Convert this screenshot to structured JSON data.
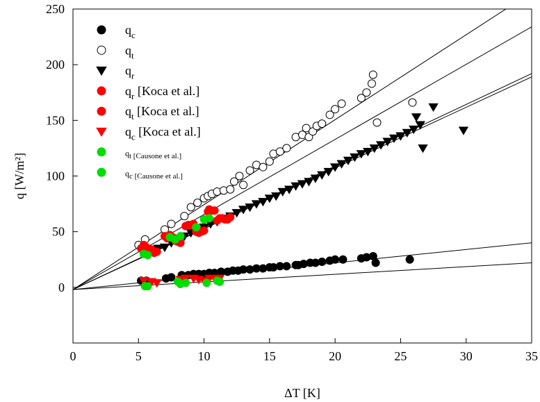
{
  "chart_data": {
    "type": "scatter",
    "title": "",
    "xlabel": "ΔT [K]",
    "ylabel": "q [W/m²]",
    "xlim": [
      0,
      35
    ],
    "ylim": [
      -50,
      250
    ],
    "x_ticks": [
      0,
      5,
      10,
      15,
      20,
      25,
      30,
      35
    ],
    "y_ticks": [
      0,
      50,
      100,
      150,
      200,
      250
    ],
    "grid": false,
    "legend_position": "top-left",
    "series": [
      {
        "name": "qc",
        "marker": "circle",
        "filled": true,
        "color": "#000000",
        "points": [
          [
            5.2,
            6
          ],
          [
            5.6,
            6
          ],
          [
            7.1,
            8
          ],
          [
            7.5,
            9
          ],
          [
            8.3,
            11
          ],
          [
            8.8,
            11
          ],
          [
            9.2,
            12
          ],
          [
            9.6,
            12
          ],
          [
            10,
            12
          ],
          [
            10.4,
            13
          ],
          [
            10.8,
            13
          ],
          [
            11.3,
            14
          ],
          [
            11.8,
            14
          ],
          [
            12.2,
            15
          ],
          [
            12.6,
            15
          ],
          [
            13,
            16
          ],
          [
            13.5,
            16
          ],
          [
            14,
            17
          ],
          [
            14.5,
            17
          ],
          [
            15,
            18
          ],
          [
            15.3,
            18
          ],
          [
            15.8,
            19
          ],
          [
            16.3,
            19
          ],
          [
            17,
            20
          ],
          [
            17.2,
            20
          ],
          [
            17.6,
            21
          ],
          [
            18.1,
            22
          ],
          [
            18.5,
            22
          ],
          [
            19,
            23
          ],
          [
            19.6,
            24
          ],
          [
            20,
            25
          ],
          [
            20.6,
            25
          ],
          [
            22,
            26
          ],
          [
            22.4,
            27
          ],
          [
            22.9,
            28
          ],
          [
            23.1,
            22
          ],
          [
            25.7,
            25
          ]
        ]
      },
      {
        "name": "qt",
        "marker": "circle",
        "filled": false,
        "color": "#000000",
        "points": [
          [
            5,
            38
          ],
          [
            5.5,
            43
          ],
          [
            7,
            52
          ],
          [
            7.5,
            57
          ],
          [
            8.5,
            64
          ],
          [
            9,
            72
          ],
          [
            9.5,
            76
          ],
          [
            10,
            80
          ],
          [
            10.3,
            82
          ],
          [
            10.6,
            84
          ],
          [
            11,
            86
          ],
          [
            11.5,
            87
          ],
          [
            12,
            88
          ],
          [
            12.3,
            95
          ],
          [
            12.7,
            100
          ],
          [
            13,
            92
          ],
          [
            13.5,
            105
          ],
          [
            14,
            110
          ],
          [
            14.5,
            108
          ],
          [
            15,
            113
          ],
          [
            15.3,
            120
          ],
          [
            15.8,
            122
          ],
          [
            16.3,
            125
          ],
          [
            17,
            135
          ],
          [
            17.5,
            137
          ],
          [
            17.8,
            143
          ],
          [
            18,
            135
          ],
          [
            18.3,
            140
          ],
          [
            18.6,
            145
          ],
          [
            19,
            147
          ],
          [
            19.6,
            155
          ],
          [
            20,
            160
          ],
          [
            20.5,
            165
          ],
          [
            22,
            170
          ],
          [
            22.4,
            175
          ],
          [
            22.8,
            183
          ],
          [
            22.9,
            191
          ],
          [
            23.2,
            148
          ],
          [
            25.9,
            166
          ]
        ]
      },
      {
        "name": "qr",
        "marker": "triangle-down",
        "filled": true,
        "color": "#000000",
        "points": [
          [
            6,
            33
          ],
          [
            6.5,
            35
          ],
          [
            7,
            36
          ],
          [
            7.5,
            40
          ],
          [
            8,
            44
          ],
          [
            8.5,
            46
          ],
          [
            9,
            49
          ],
          [
            9.5,
            51
          ],
          [
            10,
            54
          ],
          [
            10.5,
            57
          ],
          [
            11,
            59
          ],
          [
            11.5,
            62
          ],
          [
            12,
            64
          ],
          [
            12.5,
            67
          ],
          [
            13,
            70
          ],
          [
            13.5,
            72
          ],
          [
            14,
            75
          ],
          [
            14.5,
            77
          ],
          [
            15,
            80
          ],
          [
            15.5,
            82
          ],
          [
            16,
            86
          ],
          [
            16.5,
            88
          ],
          [
            17,
            91
          ],
          [
            17.5,
            93
          ],
          [
            18,
            95
          ],
          [
            18.5,
            98
          ],
          [
            19,
            101
          ],
          [
            19.5,
            104
          ],
          [
            20,
            108
          ],
          [
            20.5,
            111
          ],
          [
            21,
            114
          ],
          [
            21.5,
            117
          ],
          [
            22,
            120
          ],
          [
            22.5,
            122
          ],
          [
            23,
            125
          ],
          [
            23.5,
            128
          ],
          [
            24,
            131
          ],
          [
            24.5,
            134
          ],
          [
            25,
            136
          ],
          [
            25.5,
            139
          ],
          [
            26,
            142
          ],
          [
            26.5,
            146
          ],
          [
            26.2,
            153
          ],
          [
            26.7,
            125
          ],
          [
            27.5,
            162
          ],
          [
            29.8,
            141
          ]
        ]
      },
      {
        "name": "qr [Koca et al.]",
        "marker": "circle",
        "filled": true,
        "color": "#ff0000",
        "points": [
          [
            5.2,
            35
          ],
          [
            5.6,
            36
          ],
          [
            6,
            34
          ],
          [
            6.4,
            32
          ],
          [
            7,
            46
          ],
          [
            7.4,
            47
          ],
          [
            7.8,
            42
          ],
          [
            8.2,
            40
          ],
          [
            8.8,
            56
          ],
          [
            9.2,
            57
          ],
          [
            9.6,
            49
          ],
          [
            10,
            51
          ],
          [
            10.3,
            68
          ],
          [
            10.6,
            69
          ],
          [
            11,
            60
          ],
          [
            11.4,
            62
          ],
          [
            11.8,
            61
          ]
        ]
      },
      {
        "name": "qt [Koca et al.]",
        "marker": "circle",
        "filled": true,
        "color": "#ff0000",
        "points": [
          [
            5.4,
            38
          ],
          [
            5.8,
            33
          ],
          [
            6.2,
            31
          ],
          [
            7.2,
            44
          ],
          [
            7.6,
            45
          ],
          [
            8,
            41
          ],
          [
            8.6,
            55
          ],
          [
            9,
            56
          ],
          [
            9.4,
            50
          ],
          [
            9.8,
            50
          ],
          [
            10.4,
            70
          ],
          [
            10.8,
            69
          ],
          [
            11.2,
            62
          ],
          [
            11.6,
            61
          ],
          [
            12,
            63
          ]
        ]
      },
      {
        "name": "qc [Koca et al.]",
        "marker": "triangle-down",
        "filled": true,
        "color": "#ff0000",
        "points": [
          [
            5.4,
            6
          ],
          [
            6,
            5
          ],
          [
            6.4,
            4
          ],
          [
            8.2,
            7
          ],
          [
            8.6,
            8
          ],
          [
            9.2,
            8
          ],
          [
            9.6,
            7
          ],
          [
            10,
            6
          ],
          [
            10.4,
            8
          ],
          [
            10.8,
            8
          ],
          [
            11.2,
            8
          ]
        ]
      },
      {
        "name": "qt [Causone et al.]",
        "marker": "circle",
        "filled": true,
        "color": "#00dd00",
        "points": [
          [
            5.4,
            30
          ],
          [
            5.7,
            29
          ],
          [
            7.4,
            45
          ],
          [
            7.8,
            43
          ],
          [
            8.2,
            46
          ],
          [
            9.4,
            54
          ],
          [
            10,
            61
          ],
          [
            10.4,
            62
          ]
        ]
      },
      {
        "name": "qc [Causone et al.]",
        "marker": "circle",
        "filled": true,
        "color": "#00dd00",
        "points": [
          [
            5.5,
            1
          ],
          [
            5.7,
            1
          ],
          [
            8,
            5
          ],
          [
            8.2,
            3
          ],
          [
            8.6,
            4
          ],
          [
            10.2,
            4
          ],
          [
            11,
            6
          ],
          [
            11.2,
            5
          ]
        ]
      }
    ],
    "fit_lines": [
      {
        "x": [
          0,
          35
        ],
        "y": [
          -2,
          265
        ]
      },
      {
        "x": [
          0,
          35
        ],
        "y": [
          -2,
          234
        ]
      },
      {
        "x": [
          0,
          35
        ],
        "y": [
          -2,
          192
        ]
      },
      {
        "x": [
          0,
          35
        ],
        "y": [
          -2,
          189
        ]
      },
      {
        "x": [
          0,
          35
        ],
        "y": [
          -2,
          40
        ]
      },
      {
        "x": [
          0,
          35
        ],
        "y": [
          -2,
          22
        ]
      }
    ],
    "legend": [
      {
        "main": "q",
        "sub": "c",
        "rest": "",
        "marker": "circle",
        "filled": true,
        "color": "#000000",
        "small": false
      },
      {
        "main": "q",
        "sub": "t",
        "rest": "",
        "marker": "circle",
        "filled": false,
        "color": "#000000",
        "small": false
      },
      {
        "main": "q",
        "sub": "r",
        "rest": "",
        "marker": "triangle-down",
        "filled": true,
        "color": "#000000",
        "small": false
      },
      {
        "main": "q",
        "sub": "r",
        "rest": " [Koca et al.]",
        "marker": "circle",
        "filled": true,
        "color": "#ff0000",
        "small": false
      },
      {
        "main": "q",
        "sub": "t",
        "rest": " [Koca et al.]",
        "marker": "circle",
        "filled": true,
        "color": "#ff0000",
        "small": false
      },
      {
        "main": "q",
        "sub": "c",
        "rest": " [Koca et al.]",
        "marker": "triangle-down",
        "filled": true,
        "color": "#ff0000",
        "small": false
      },
      {
        "main": "q",
        "sub": "t [Causone et al.]",
        "rest": "",
        "marker": "circle",
        "filled": true,
        "color": "#00dd00",
        "small": true
      },
      {
        "main": "q",
        "sub": "c [Causone et al.]",
        "rest": "",
        "marker": "circle",
        "filled": true,
        "color": "#00dd00",
        "small": true
      }
    ]
  }
}
